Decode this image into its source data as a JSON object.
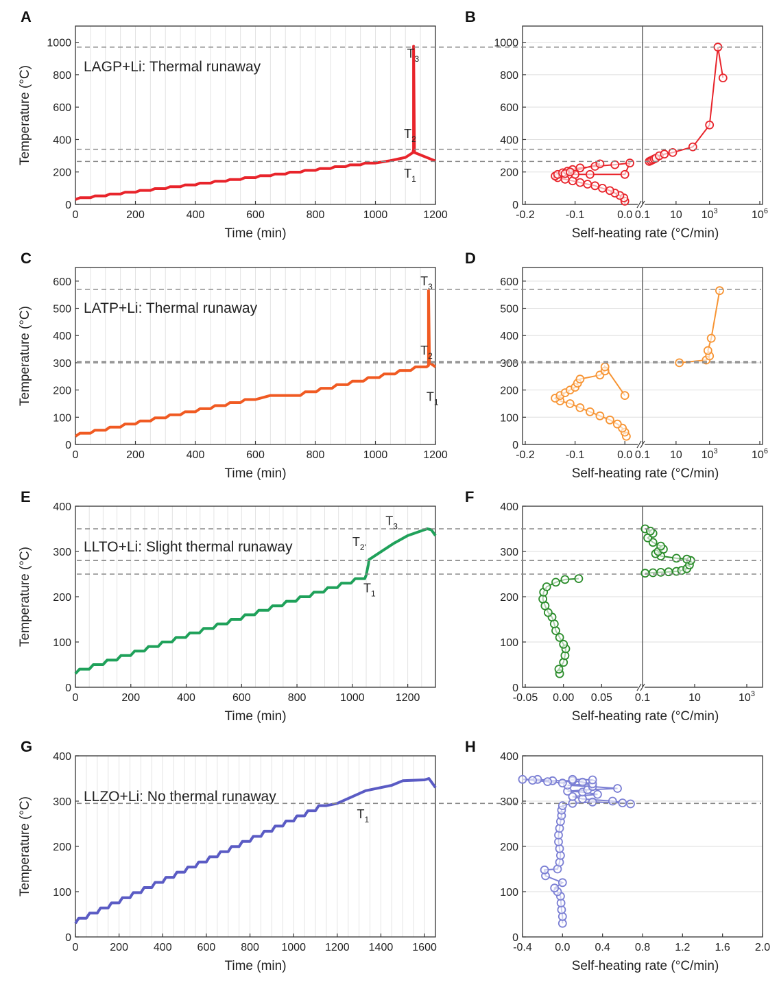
{
  "figure": {
    "y_axis_title": "Temperature (°C)"
  },
  "chart_data": [
    {
      "panel": "A",
      "type": "line",
      "annotation": "LAGP+Li: Thermal runaway",
      "xlabel": "Time (min)",
      "ylabel": "Temperature (°C)",
      "xlim": [
        0,
        1200
      ],
      "ylim": [
        0,
        1100
      ],
      "xticks": [
        "0",
        "200",
        "400",
        "600",
        "800",
        "1000",
        "1200"
      ],
      "yticks": [
        "0",
        "200",
        "400",
        "600",
        "800",
        "1000"
      ],
      "color": "#e8242b",
      "grid": "vertical",
      "markers": [
        {
          "text": "T",
          "sub": "3",
          "x": 1105,
          "y": 905
        },
        {
          "text": "T",
          "sub": "2",
          "x": 1095,
          "y": 410
        },
        {
          "text": "T",
          "sub": "1",
          "x": 1095,
          "y": 165
        }
      ],
      "dashed_levels": [
        970,
        340,
        265
      ],
      "series": [
        {
          "step": true,
          "x": [
            0,
            1000,
            1050,
            1100,
            1125,
            1127,
            1127,
            1130,
            1200
          ],
          "y": [
            30,
            255,
            270,
            290,
            320,
            340,
            975,
            320,
            268
          ]
        }
      ]
    },
    {
      "panel": "B",
      "type": "scatter",
      "xlabel": "Self-heating rate (°C/min)",
      "ylabel": "",
      "ylim": [
        0,
        1100
      ],
      "left_xlim": [
        -0.2,
        0.03
      ],
      "left_xticks": [
        "-0.2",
        "-0.1",
        "0.0"
      ],
      "right_xlim_log10": [
        -1,
        6
      ],
      "right_xticks": [
        "0.1",
        "10",
        "10^3",
        "10^6"
      ],
      "yticks": [
        "0",
        "200",
        "400",
        "600",
        "800",
        "1000"
      ],
      "color": "#e8242b",
      "left_points": [
        [
          0.0,
          20
        ],
        [
          -0.002,
          40
        ],
        [
          -0.01,
          55
        ],
        [
          -0.02,
          70
        ],
        [
          -0.03,
          85
        ],
        [
          -0.045,
          100
        ],
        [
          -0.06,
          115
        ],
        [
          -0.075,
          125
        ],
        [
          -0.09,
          135
        ],
        [
          -0.105,
          145
        ],
        [
          -0.12,
          155
        ],
        [
          -0.135,
          165
        ],
        [
          -0.14,
          175
        ],
        [
          -0.135,
          185
        ],
        [
          -0.125,
          195
        ],
        [
          -0.115,
          205
        ],
        [
          -0.105,
          215
        ],
        [
          -0.09,
          225
        ],
        [
          -0.06,
          235
        ],
        [
          -0.02,
          245
        ],
        [
          0.01,
          255
        ],
        [
          0.0,
          185
        ],
        [
          -0.07,
          185
        ],
        [
          -0.1,
          185
        ],
        [
          -0.12,
          190
        ],
        [
          -0.11,
          200
        ],
        [
          -0.05,
          250
        ]
      ],
      "right_points_log10": [
        [
          -0.6,
          265
        ],
        [
          -0.5,
          270
        ],
        [
          -0.4,
          275
        ],
        [
          -0.3,
          280
        ],
        [
          -0.2,
          285
        ],
        [
          0.0,
          300
        ],
        [
          0.3,
          310
        ],
        [
          0.8,
          320
        ],
        [
          2.0,
          355
        ],
        [
          3.0,
          490
        ],
        [
          3.5,
          970
        ],
        [
          3.8,
          780
        ]
      ]
    },
    {
      "panel": "C",
      "type": "line",
      "annotation": "LATP+Li: Thermal runaway",
      "xlabel": "Time (min)",
      "ylabel": "Temperature (°C)",
      "xlim": [
        0,
        1200
      ],
      "ylim": [
        0,
        650
      ],
      "xticks": [
        "0",
        "200",
        "400",
        "600",
        "800",
        "1000",
        "1200"
      ],
      "yticks": [
        "0",
        "100",
        "200",
        "300",
        "400",
        "500",
        "600"
      ],
      "color": "#f05a22",
      "grid": "vertical",
      "markers": [
        {
          "text": "T",
          "sub": "3",
          "x": 1150,
          "y": 585
        },
        {
          "text": "T",
          "sub": "2",
          "x": 1150,
          "y": 330
        },
        {
          "text": "T",
          "sub": "1",
          "x": 1170,
          "y": 160
        }
      ],
      "dashed_levels": [
        570,
        305,
        300
      ],
      "series": [
        {
          "step": true,
          "x": [
            0,
            600,
            650,
            750,
            1170,
            1177,
            1177,
            1180,
            1200
          ],
          "y": [
            30,
            165,
            180,
            180,
            285,
            290,
            565,
            300,
            285
          ]
        }
      ]
    },
    {
      "panel": "D",
      "type": "scatter",
      "xlabel": "Self-heating rate (°C/min)",
      "ylabel": "",
      "ylim": [
        0,
        650
      ],
      "left_xlim": [
        -0.2,
        0.03
      ],
      "left_xticks": [
        "-0.2",
        "-0.1",
        "0.0"
      ],
      "right_xlim_log10": [
        -1,
        6
      ],
      "right_xticks": [
        "0.1",
        "10",
        "10^3",
        "10^6"
      ],
      "yticks": [
        "0",
        "100",
        "200",
        "300",
        "400",
        "500",
        "600"
      ],
      "color": "#f79433",
      "left_points": [
        [
          0.003,
          30
        ],
        [
          0.0,
          45
        ],
        [
          -0.005,
          60
        ],
        [
          -0.015,
          75
        ],
        [
          -0.03,
          90
        ],
        [
          -0.05,
          105
        ],
        [
          -0.07,
          120
        ],
        [
          -0.09,
          135
        ],
        [
          -0.11,
          150
        ],
        [
          -0.13,
          160
        ],
        [
          -0.14,
          170
        ],
        [
          -0.13,
          180
        ],
        [
          -0.12,
          190
        ],
        [
          -0.11,
          200
        ],
        [
          -0.1,
          210
        ],
        [
          -0.095,
          225
        ],
        [
          -0.09,
          240
        ],
        [
          -0.05,
          255
        ],
        [
          -0.04,
          270
        ],
        [
          -0.04,
          285
        ],
        [
          0.0,
          180
        ]
      ],
      "right_points_log10": [
        [
          1.2,
          300
        ],
        [
          2.8,
          310
        ],
        [
          3.0,
          325
        ],
        [
          2.9,
          345
        ],
        [
          3.1,
          390
        ],
        [
          3.6,
          565
        ]
      ]
    },
    {
      "panel": "E",
      "type": "line",
      "annotation": "LLTO+Li: Slight thermal runaway",
      "xlabel": "Time (min)",
      "ylabel": "Temperature (°C)",
      "xlim": [
        0,
        1300
      ],
      "ylim": [
        0,
        400
      ],
      "xticks": [
        "0",
        "200",
        "400",
        "600",
        "800",
        "1000",
        "1200"
      ],
      "yticks": [
        "0",
        "100",
        "200",
        "300",
        "400"
      ],
      "color": "#1fa15a",
      "grid": "vertical",
      "markers": [
        {
          "text": "T",
          "sub": "3",
          "x": 1120,
          "y": 358
        },
        {
          "text": "T",
          "sub": "2",
          "x": 1000,
          "y": 312,
          "prime": true
        },
        {
          "text": "T",
          "sub": "1",
          "x": 1040,
          "y": 210
        }
      ],
      "dashed_levels": [
        350,
        280,
        250
      ],
      "series": [
        {
          "step": true,
          "x": [
            0,
            1045,
            1050,
            1058,
            1060,
            1080,
            1150,
            1200,
            1270,
            1285,
            1300
          ],
          "y": [
            30,
            240,
            248,
            272,
            282,
            290,
            318,
            335,
            350,
            348,
            335
          ]
        }
      ]
    },
    {
      "panel": "F",
      "type": "scatter",
      "xlabel": "Self-heating rate (°C/min)",
      "ylabel": "",
      "ylim": [
        0,
        400
      ],
      "left_xlim": [
        -0.05,
        0.1
      ],
      "left_xticks": [
        "-0.05",
        "0.00",
        "0.05"
      ],
      "right_xlim_log10": [
        -1,
        3.5
      ],
      "right_xticks": [
        "0.1",
        "10",
        "10^3"
      ],
      "yticks": [
        "0",
        "100",
        "200",
        "300",
        "400"
      ],
      "color": "#2a8c2a",
      "left_points": [
        [
          -0.005,
          30
        ],
        [
          -0.006,
          40
        ],
        [
          0.0,
          55
        ],
        [
          0.002,
          70
        ],
        [
          0.003,
          85
        ],
        [
          0.0,
          95
        ],
        [
          -0.005,
          110
        ],
        [
          -0.01,
          125
        ],
        [
          -0.012,
          140
        ],
        [
          -0.015,
          155
        ],
        [
          -0.02,
          165
        ],
        [
          -0.024,
          180
        ],
        [
          -0.027,
          195
        ],
        [
          -0.026,
          210
        ],
        [
          -0.022,
          222
        ],
        [
          -0.01,
          232
        ],
        [
          0.002,
          238
        ],
        [
          0.02,
          240
        ]
      ],
      "right_points_log10": [
        [
          -0.9,
          252
        ],
        [
          -0.6,
          253
        ],
        [
          -0.3,
          254
        ],
        [
          0.0,
          255
        ],
        [
          0.3,
          256
        ],
        [
          0.5,
          258
        ],
        [
          0.7,
          262
        ],
        [
          0.8,
          270
        ],
        [
          0.85,
          280
        ],
        [
          0.7,
          283
        ],
        [
          0.3,
          285
        ],
        [
          -0.3,
          290
        ],
        [
          -0.5,
          295
        ],
        [
          -0.4,
          300
        ],
        [
          -0.2,
          305
        ],
        [
          -0.3,
          312
        ],
        [
          -0.6,
          320
        ],
        [
          -0.8,
          330
        ],
        [
          -0.6,
          340
        ],
        [
          -0.9,
          350
        ],
        [
          -0.7,
          345
        ]
      ]
    },
    {
      "panel": "G",
      "type": "line",
      "annotation": "LLZO+Li: No thermal runaway",
      "xlabel": "Time (min)",
      "ylabel": "Temperature (°C)",
      "xlim": [
        0,
        1650
      ],
      "ylim": [
        0,
        400
      ],
      "xticks": [
        "0",
        "200",
        "400",
        "600",
        "800",
        "1000",
        "1200",
        "1400",
        "1600"
      ],
      "yticks": [
        "0",
        "100",
        "200",
        "300",
        "400"
      ],
      "color": "#5a5bc4",
      "grid": "vertical",
      "markers": [
        {
          "text": "T",
          "sub": "1",
          "x": 1290,
          "y": 262
        }
      ],
      "dashed_levels": [
        295
      ],
      "series": [
        {
          "step": true,
          "x": [
            0,
            1150,
            1200,
            1330,
            1450,
            1500,
            1600,
            1620,
            1650
          ],
          "y": [
            30,
            290,
            295,
            323,
            335,
            345,
            347,
            350,
            330
          ]
        }
      ]
    },
    {
      "panel": "H",
      "type": "scatter",
      "xlabel": "Self-heating rate (°C/min)",
      "ylabel": "",
      "xlim": [
        -0.4,
        2.0
      ],
      "ylim": [
        0,
        400
      ],
      "xticks": [
        "-0.4",
        "0.0",
        "0.4",
        "0.8",
        "1.2",
        "1.6",
        "2.0"
      ],
      "yticks": [
        "0",
        "100",
        "200",
        "300",
        "400"
      ],
      "color": "#7b7fd4",
      "points": [
        [
          0.0,
          30
        ],
        [
          0.0,
          45
        ],
        [
          -0.01,
          60
        ],
        [
          -0.015,
          75
        ],
        [
          -0.02,
          90
        ],
        [
          -0.05,
          100
        ],
        [
          -0.08,
          108
        ],
        [
          0.0,
          120
        ],
        [
          -0.17,
          135
        ],
        [
          -0.18,
          148
        ],
        [
          -0.05,
          150
        ],
        [
          -0.03,
          165
        ],
        [
          -0.02,
          180
        ],
        [
          -0.03,
          195
        ],
        [
          -0.04,
          210
        ],
        [
          -0.04,
          225
        ],
        [
          -0.03,
          240
        ],
        [
          -0.02,
          255
        ],
        [
          -0.01,
          268
        ],
        [
          -0.01,
          280
        ],
        [
          0.0,
          290
        ],
        [
          0.1,
          295
        ],
        [
          0.3,
          298
        ],
        [
          0.6,
          296
        ],
        [
          0.68,
          294
        ],
        [
          0.5,
          300
        ],
        [
          0.2,
          305
        ],
        [
          0.1,
          310
        ],
        [
          0.35,
          315
        ],
        [
          0.2,
          320
        ],
        [
          0.05,
          322
        ],
        [
          0.25,
          325
        ],
        [
          0.55,
          328
        ],
        [
          0.3,
          332
        ],
        [
          0.05,
          335
        ],
        [
          0.3,
          338
        ],
        [
          0.2,
          342
        ],
        [
          0.1,
          345
        ],
        [
          -0.1,
          345
        ],
        [
          -0.25,
          348
        ],
        [
          -0.4,
          348
        ],
        [
          -0.3,
          346
        ],
        [
          -0.15,
          343
        ],
        [
          0.0,
          340
        ],
        [
          0.1,
          348
        ],
        [
          0.3,
          347
        ]
      ]
    }
  ]
}
